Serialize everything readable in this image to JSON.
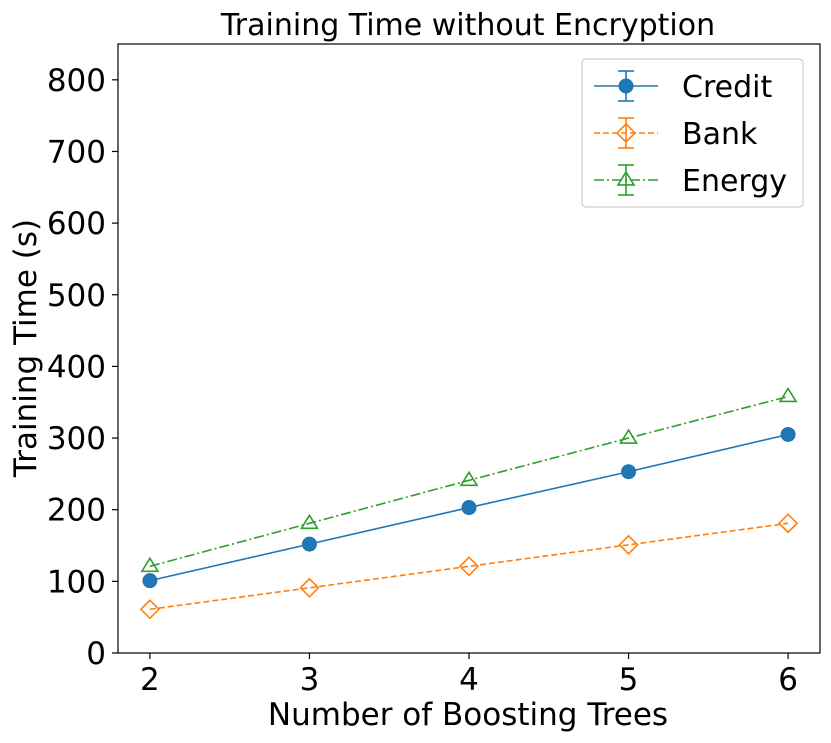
{
  "chart_data": {
    "type": "line",
    "title": "Training Time without Encryption",
    "xlabel": "Number of Boosting Trees",
    "ylabel": "Training Time (s)",
    "x": [
      2,
      3,
      4,
      5,
      6
    ],
    "xlim": [
      1.8,
      6.2
    ],
    "ylim": [
      0,
      850
    ],
    "xticks": [
      2,
      3,
      4,
      5,
      6
    ],
    "yticks": [
      0,
      100,
      200,
      300,
      400,
      500,
      600,
      700,
      800
    ],
    "grid": false,
    "legend_position": "top-right",
    "series": [
      {
        "name": "Credit",
        "values": [
          101,
          152,
          203,
          253,
          305
        ],
        "color": "#1f77b4",
        "marker": "circle",
        "line_style": "solid"
      },
      {
        "name": "Bank",
        "values": [
          61,
          91,
          121,
          151,
          181
        ],
        "color": "#ff7f0e",
        "marker": "diamond-open",
        "line_style": "dashed"
      },
      {
        "name": "Energy",
        "values": [
          121,
          181,
          241,
          300,
          358
        ],
        "color": "#2ca02c",
        "marker": "triangle-open",
        "line_style": "dashdot"
      }
    ]
  }
}
